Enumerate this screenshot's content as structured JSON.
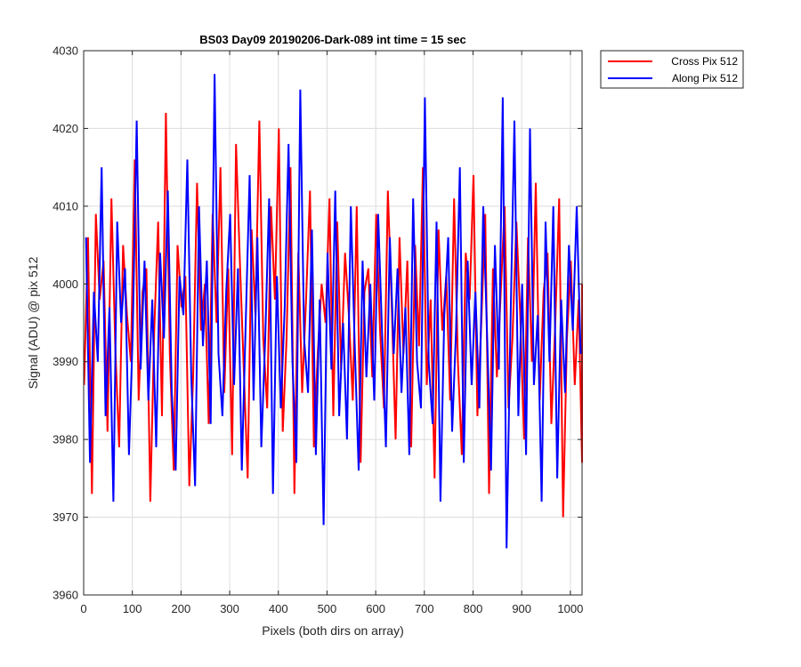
{
  "chart_data": {
    "type": "line",
    "title": "BS03 Day09 20190206-Dark-089 int time = 15 sec",
    "xlabel": "Pixels (both dirs on array)",
    "ylabel": "Signal (ADU) @ pix 512",
    "xlim": [
      0,
      1024
    ],
    "ylim": [
      3960,
      4030
    ],
    "x_ticks": [
      "0",
      "100",
      "200",
      "300",
      "400",
      "500",
      "600",
      "700",
      "800",
      "900",
      "1000"
    ],
    "y_ticks": [
      "3960",
      "3970",
      "3980",
      "3990",
      "4000",
      "4010",
      "4020",
      "4030"
    ],
    "grid": true,
    "legend_position": "outside-top-right",
    "series": [
      {
        "name": "Cross Pix 512",
        "color": "#ff0000",
        "x_start": 1,
        "x_step": 8,
        "values": [
          3987,
          4006,
          3973,
          4009,
          3998,
          4003,
          3981,
          4011,
          3992,
          3979,
          4005,
          3996,
          3990,
          4016,
          3985,
          3999,
          4002,
          3972,
          3994,
          4008,
          3983,
          4022,
          3991,
          3976,
          4005,
          3997,
          4001,
          3974,
          3988,
          4013,
          3994,
          4000,
          3982,
          4009,
          3995,
          4015,
          3986,
          4002,
          3978,
          4018,
          4003,
          3989,
          3975,
          4007,
          3996,
          4021,
          3993,
          3984,
          4010,
          3998,
          4020,
          3981,
          3993,
          4015,
          3973,
          4004,
          3986,
          3998,
          4012,
          3979,
          3991,
          4000,
          3995,
          4011,
          3983,
          4008,
          3989,
          4004,
          3996,
          3985,
          4010,
          3977,
          3999,
          4002,
          3988,
          4009,
          3994,
          3984,
          4012,
          3997,
          3980,
          4006,
          3991,
          4003,
          3979,
          4005,
          3992,
          4015,
          3987,
          3998,
          3975,
          4007,
          3994,
          4001,
          3985,
          4011,
          3990,
          3978,
          4004,
          3998,
          4014,
          3983,
          3995,
          4009,
          3973,
          4002,
          3988,
          3999,
          4010,
          3984,
          3993,
          4008,
          3996,
          3980,
          4006,
          3990,
          4013,
          3985,
          3999,
          4004,
          3982,
          3995,
          4011,
          3970,
          3993,
          4003,
          3987,
          3998,
          3977,
          4000
        ]
      },
      {
        "name": "Along Pix 512",
        "color": "#0000ff",
        "x_start": 5,
        "x_step": 8,
        "values": [
          4006,
          3977,
          3999,
          3990,
          4015,
          3983,
          3997,
          3972,
          4008,
          3995,
          4002,
          3978,
          3994,
          4021,
          3989,
          4003,
          3985,
          3998,
          3979,
          4004,
          3993,
          4012,
          3986,
          3976,
          4001,
          3996,
          4016,
          3988,
          3974,
          4010,
          3992,
          4003,
          3982,
          4027,
          3991,
          3983,
          3999,
          4009,
          3987,
          4002,
          3976,
          3995,
          4014,
          3985,
          4006,
          3979,
          3993,
          4011,
          3973,
          4001,
          3984,
          3997,
          4018,
          3990,
          3977,
          4025,
          3993,
          3986,
          4007,
          3978,
          3998,
          3969,
          4004,
          3989,
          4012,
          3983,
          3995,
          3980,
          4010,
          3992,
          3976,
          4003,
          3988,
          4000,
          3985,
          4009,
          3994,
          3979,
          4006,
          3991,
          4002,
          3986,
          3997,
          3978,
          4011,
          3990,
          3984,
          4024,
          3990,
          3982,
          4008,
          3972,
          3996,
          4006,
          3981,
          3994,
          4015,
          3977,
          4003,
          3987,
          3999,
          3984,
          4010,
          3993,
          3976,
          4005,
          3989,
          4024,
          3966,
          3995,
          4021,
          3983,
          4000,
          3978,
          4020,
          3987,
          3996,
          3972,
          4008,
          3990,
          4010,
          3975,
          3998,
          3986,
          4005,
          3994,
          4010,
          3991
        ]
      }
    ]
  }
}
